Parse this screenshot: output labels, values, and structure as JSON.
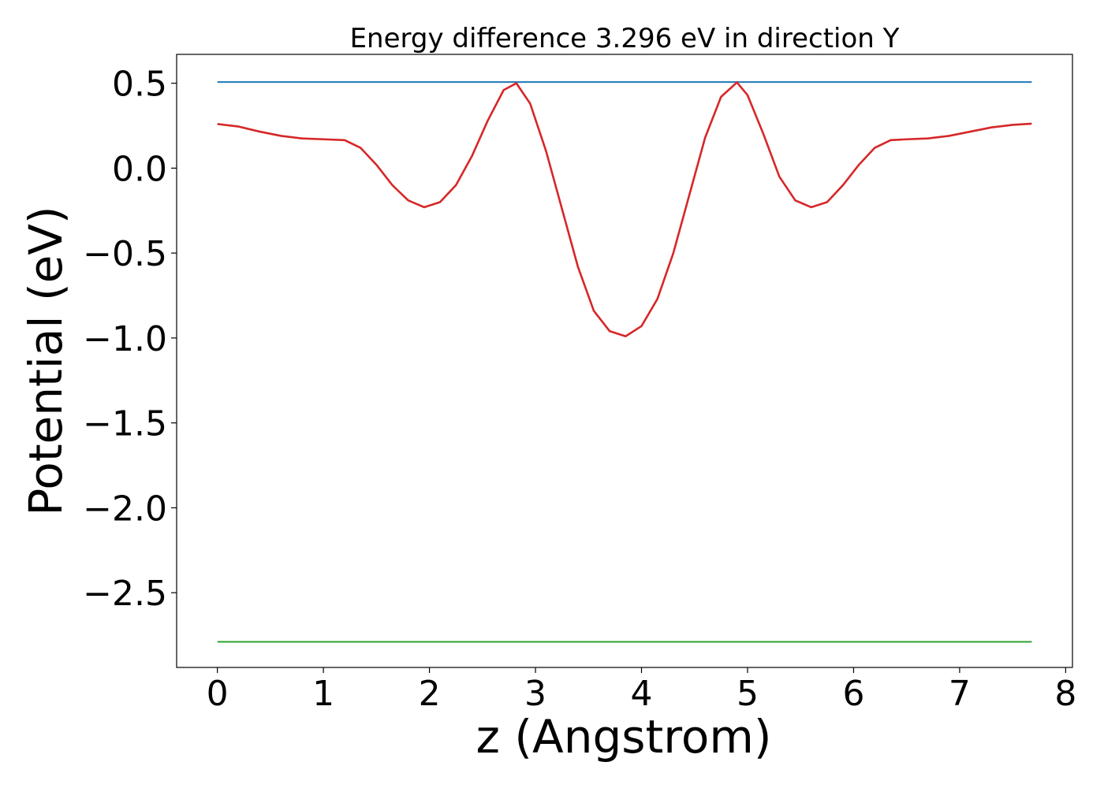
{
  "chart_data": {
    "type": "line",
    "title": "Energy difference 3.296 eV in direction Y",
    "xlabel": "z (Angstrom)",
    "ylabel": "Potential (eV)",
    "xlim": [
      -0.384,
      8.064
    ],
    "ylim": [
      -2.94,
      0.67
    ],
    "x_ticks": [
      0,
      1,
      2,
      3,
      4,
      5,
      6,
      7,
      8
    ],
    "x_tick_labels": [
      "0",
      "1",
      "2",
      "3",
      "4",
      "5",
      "6",
      "7",
      "8"
    ],
    "y_ticks": [
      0.5,
      0.0,
      -0.5,
      -1.0,
      -1.5,
      -2.0,
      -2.5
    ],
    "y_tick_labels": [
      "0.5",
      "0.0",
      "−0.5",
      "−1.0",
      "−1.5",
      "−2.0",
      "−2.5"
    ],
    "grid": false,
    "legend": "none",
    "series": [
      {
        "color": "#1f77b4",
        "x": [
          0,
          7.68
        ],
        "y": [
          0.507,
          0.507
        ]
      },
      {
        "color": "#2ca02c",
        "x": [
          0,
          7.68
        ],
        "y": [
          -2.789,
          -2.789
        ]
      },
      {
        "color": "#d62728",
        "x": [
          0,
          0.2,
          0.4,
          0.6,
          0.8,
          1.0,
          1.2,
          1.35,
          1.5,
          1.65,
          1.8,
          1.95,
          2.1,
          2.25,
          2.4,
          2.55,
          2.7,
          2.82,
          2.95,
          3.1,
          3.25,
          3.4,
          3.55,
          3.7,
          3.85,
          4.0,
          4.15,
          4.3,
          4.45,
          4.6,
          4.75,
          4.9,
          5.0,
          5.15,
          5.3,
          5.45,
          5.6,
          5.75,
          5.9,
          6.05,
          6.2,
          6.35,
          6.5,
          6.7,
          6.9,
          7.1,
          7.3,
          7.5,
          7.68
        ],
        "y": [
          0.26,
          0.245,
          0.215,
          0.19,
          0.175,
          0.17,
          0.165,
          0.12,
          0.02,
          -0.1,
          -0.19,
          -0.23,
          -0.2,
          -0.1,
          0.07,
          0.28,
          0.46,
          0.5,
          0.38,
          0.1,
          -0.24,
          -0.58,
          -0.84,
          -0.96,
          -0.99,
          -0.93,
          -0.77,
          -0.5,
          -0.16,
          0.18,
          0.42,
          0.505,
          0.43,
          0.2,
          -0.05,
          -0.19,
          -0.23,
          -0.2,
          -0.1,
          0.02,
          0.12,
          0.165,
          0.17,
          0.175,
          0.19,
          0.215,
          0.24,
          0.255,
          0.262
        ]
      }
    ]
  }
}
